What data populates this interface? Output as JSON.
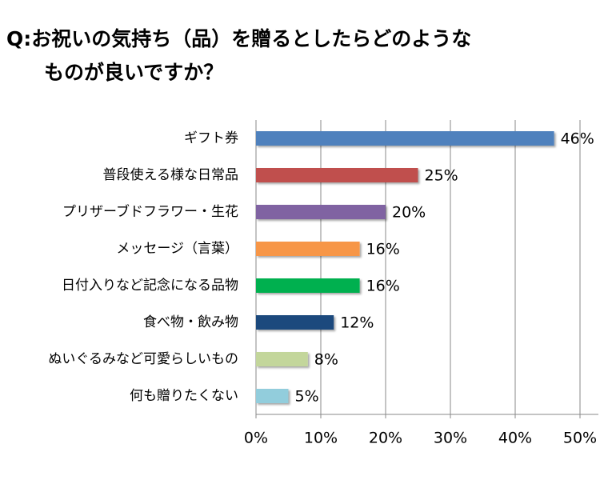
{
  "chart_data": {
    "type": "bar",
    "orientation": "horizontal",
    "title": [
      "Q:お祝いの気持ち（品）を贈るとしたらどのような",
      "ものが良いですか？"
    ],
    "categories": [
      "ギフト券",
      "普段使える様な日常品",
      "プリザーブドフラワー・生花",
      "メッセージ（言葉）",
      "日付入りなど記念になる品物",
      "食べ物・飲み物",
      "ぬいぐるみなど可愛らしいもの",
      "何も贈りたくない"
    ],
    "values": [
      46,
      25,
      20,
      16,
      16,
      12,
      8,
      5
    ],
    "value_labels": [
      "46%",
      "25%",
      "20%",
      "16%",
      "16%",
      "12%",
      "8%",
      "5%"
    ],
    "colors": [
      "#4f81bd",
      "#c0504d",
      "#8064a2",
      "#f79646",
      "#00b050",
      "#1f497d",
      "#c3d69b",
      "#92cddc"
    ],
    "xlim": [
      0,
      50
    ],
    "xticks": [
      {
        "value": 0,
        "label": "0%"
      },
      {
        "value": 10,
        "label": "10%"
      },
      {
        "value": 20,
        "label": "20%"
      },
      {
        "value": 30,
        "label": "30%"
      },
      {
        "value": 40,
        "label": "40%"
      },
      {
        "value": 50,
        "label": "50%"
      }
    ],
    "grid": true
  }
}
